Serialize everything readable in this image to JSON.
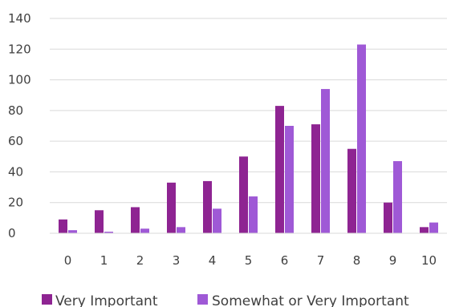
{
  "chart_data": {
    "type": "bar",
    "categories": [
      "0",
      "1",
      "2",
      "3",
      "4",
      "5",
      "6",
      "7",
      "8",
      "9",
      "10"
    ],
    "series": [
      {
        "name": "Very Important",
        "color": "#8E2492",
        "values": [
          9,
          15,
          17,
          33,
          34,
          50,
          83,
          71,
          55,
          20,
          4
        ]
      },
      {
        "name": "Somewhat or Very Important",
        "color": "#9F59D6",
        "values": [
          2,
          1,
          3,
          4,
          16,
          24,
          70,
          94,
          123,
          47,
          7
        ]
      }
    ],
    "yticks": [
      "0",
      "20",
      "40",
      "60",
      "80",
      "100",
      "120",
      "140"
    ],
    "ylim": [
      0,
      140
    ],
    "grid": true,
    "legend": "bottom"
  }
}
